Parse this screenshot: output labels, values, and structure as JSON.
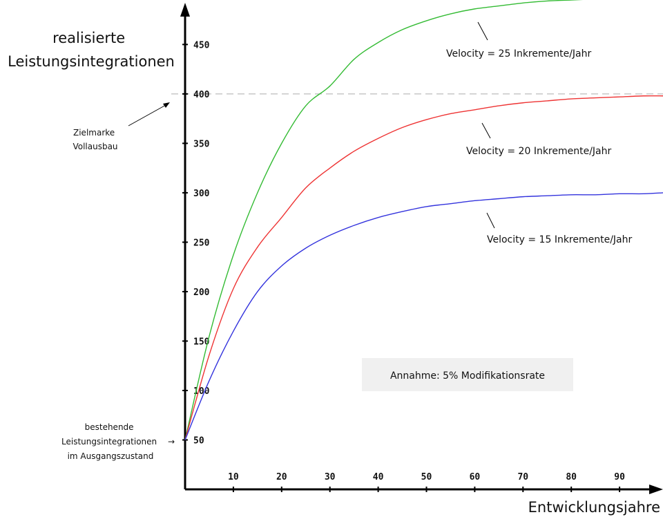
{
  "chart_data": {
    "type": "line",
    "ylabel_lines": [
      "realisierte",
      "Leistungsintegrationen"
    ],
    "xlabel": "Entwicklungsjahre",
    "xlim": [
      0,
      99
    ],
    "ylim": [
      0,
      495
    ],
    "x_ticks": [
      10,
      20,
      30,
      40,
      50,
      60,
      70,
      80,
      90
    ],
    "y_ticks": [
      50,
      100,
      150,
      200,
      250,
      300,
      350,
      400,
      450
    ],
    "grid": false,
    "reference_line": {
      "y": 400,
      "color": "#bbbbbb",
      "style": "dashed"
    },
    "annotation_target": {
      "lines": [
        "Zielmarke",
        "Vollausbau"
      ]
    },
    "annotation_start": {
      "lines": [
        "bestehende",
        "Leistungsintegrationen",
        "im Ausgangszustand"
      ],
      "arrow": "→"
    },
    "assumption_box": {
      "text": "Annahme: 5% Modifikationsrate",
      "bg": "#f0f0f0"
    },
    "series": [
      {
        "name": "Velocity = 25 Inkremente/Jahr",
        "color": "#33bb33",
        "x": [
          0,
          5,
          10,
          15,
          20,
          25,
          30,
          35,
          40,
          45,
          50,
          55,
          60,
          65,
          70,
          75,
          80,
          85,
          90,
          95,
          99
        ],
        "values": [
          50,
          155,
          237,
          300,
          350,
          388,
          408,
          435,
          452,
          465,
          474,
          481,
          486,
          489,
          492,
          494,
          495,
          496,
          497,
          497,
          497
        ]
      },
      {
        "name": "Velocity = 20 Inkremente/Jahr",
        "color": "#ee3333",
        "x": [
          0,
          5,
          10,
          15,
          20,
          25,
          30,
          35,
          40,
          45,
          50,
          55,
          60,
          65,
          70,
          75,
          80,
          85,
          90,
          95,
          99
        ],
        "values": [
          50,
          136,
          203,
          245,
          275,
          305,
          325,
          342,
          355,
          366,
          374,
          380,
          384,
          388,
          391,
          393,
          395,
          396,
          397,
          398,
          398
        ]
      },
      {
        "name": "Velocity = 15 Inkremente/Jahr",
        "color": "#3333dd",
        "x": [
          0,
          5,
          10,
          15,
          20,
          25,
          30,
          35,
          40,
          45,
          50,
          55,
          60,
          65,
          70,
          75,
          80,
          85,
          90,
          95,
          99
        ],
        "values": [
          50,
          110,
          160,
          200,
          226,
          244,
          257,
          267,
          275,
          281,
          286,
          289,
          292,
          294,
          296,
          297,
          298,
          298,
          299,
          299,
          300
        ]
      }
    ]
  }
}
